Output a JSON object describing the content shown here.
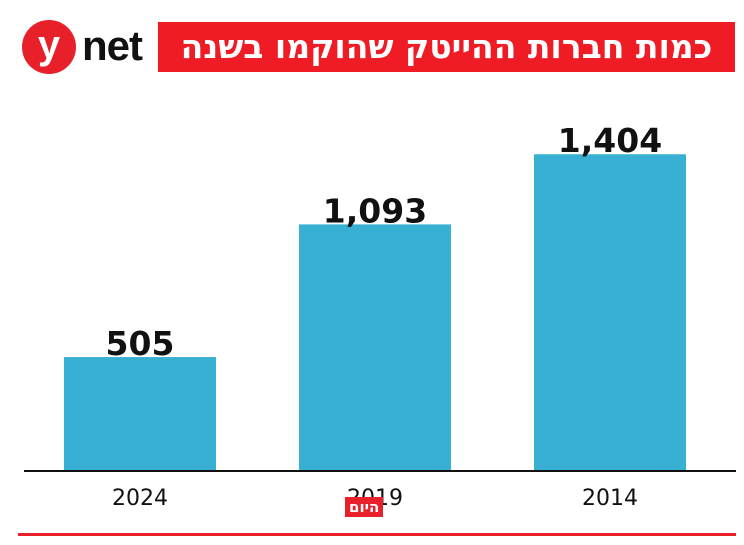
{
  "header": {
    "logo_mark": "y",
    "logo_word": "net",
    "title": "כמות חברות ההייטק שהוקמו בשנה"
  },
  "source_badge": "היום",
  "colors": {
    "bar": "#38b0d3",
    "accent": "#e8202a",
    "axis": "#111111"
  },
  "chart_data": {
    "type": "bar",
    "title": "כמות חברות ההייטק שהוקמו בשנה",
    "categories": [
      "2024",
      "2019",
      "2014"
    ],
    "values": [
      505,
      1093,
      1404
    ],
    "value_labels": [
      "505",
      "1,093",
      "1,404"
    ],
    "ylim": [
      0,
      1600
    ],
    "grid": false,
    "legend": "none"
  }
}
